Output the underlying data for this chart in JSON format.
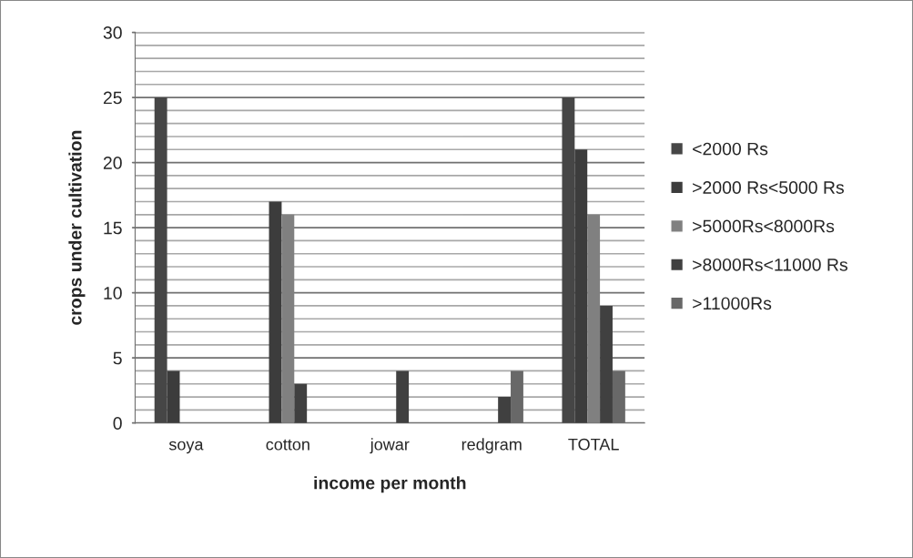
{
  "chart_data": {
    "type": "bar",
    "categories": [
      "soya",
      "cotton",
      "jowar",
      "redgram",
      "TOTAL"
    ],
    "xlabel": "income per month",
    "ylabel": "crops under cultivation",
    "series": [
      {
        "name": "<2000 Rs",
        "color": "#464646",
        "values": [
          25,
          0,
          0,
          0,
          25
        ]
      },
      {
        "name": ">2000 Rs<5000 Rs",
        "color": "#3c3c3c",
        "values": [
          4,
          17,
          0,
          0,
          21
        ]
      },
      {
        "name": ">5000Rs<8000Rs",
        "color": "#808080",
        "values": [
          0,
          16,
          0,
          0,
          16
        ]
      },
      {
        "name": ">8000Rs<11000 Rs",
        "color": "#404040",
        "values": [
          0,
          3,
          4,
          2,
          9
        ]
      },
      {
        "name": ">11000Rs",
        "color": "#686868",
        "values": [
          0,
          0,
          0,
          4,
          4
        ]
      }
    ],
    "ylim": [
      0,
      30
    ],
    "yticks": [
      0,
      {
        "value": 1,
        "label": null
      },
      {
        "value": 2,
        "label": null
      },
      {
        "value": 3,
        "label": null
      },
      {
        "value": 4,
        "label": null
      },
      5,
      {
        "value": 6,
        "label": null
      },
      {
        "value": 7,
        "label": null
      },
      {
        "value": 8,
        "label": null
      },
      {
        "value": 9,
        "label": null
      },
      10,
      {
        "value": 11,
        "label": null
      },
      {
        "value": 12,
        "label": null
      },
      {
        "value": 13,
        "label": null
      },
      {
        "value": 14,
        "label": null
      },
      15,
      {
        "value": 16,
        "label": null
      },
      {
        "value": 17,
        "label": null
      },
      {
        "value": 18,
        "label": null
      },
      {
        "value": 19,
        "label": null
      },
      20,
      {
        "value": 21,
        "label": null
      },
      {
        "value": 22,
        "label": null
      },
      {
        "value": 23,
        "label": null
      },
      {
        "value": 24,
        "label": null
      },
      25,
      {
        "value": 26,
        "label": null
      },
      {
        "value": 27,
        "label": null
      },
      {
        "value": 28,
        "label": null
      },
      {
        "value": 29,
        "label": null
      },
      30
    ],
    "grid": "y",
    "legend": "right"
  }
}
